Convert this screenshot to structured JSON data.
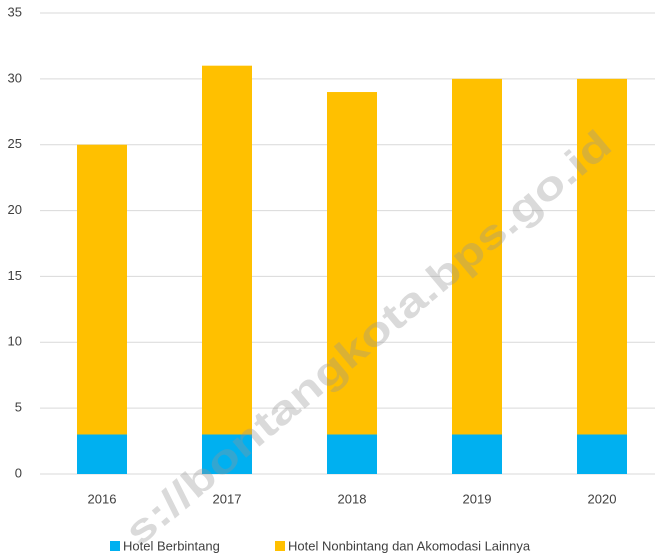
{
  "chart_data": {
    "type": "stacked_bar",
    "categories": [
      "2016",
      "2017",
      "2018",
      "2019",
      "2020"
    ],
    "series": [
      {
        "name": "Hotel Berbintang",
        "color": "#00b0f0",
        "values": [
          3,
          3,
          3,
          3,
          3
        ]
      },
      {
        "name": "Hotel Nonbintang dan Akomodasi Lainnya",
        "color": "#ffc000",
        "values": [
          22,
          28,
          26,
          27,
          27
        ]
      }
    ],
    "ylim": [
      0,
      35
    ],
    "yticks": [
      0,
      5,
      10,
      15,
      20,
      25,
      30,
      35
    ],
    "grid": true,
    "legend": "bottom",
    "watermark": "s://bontangkota.bps.go.id"
  }
}
